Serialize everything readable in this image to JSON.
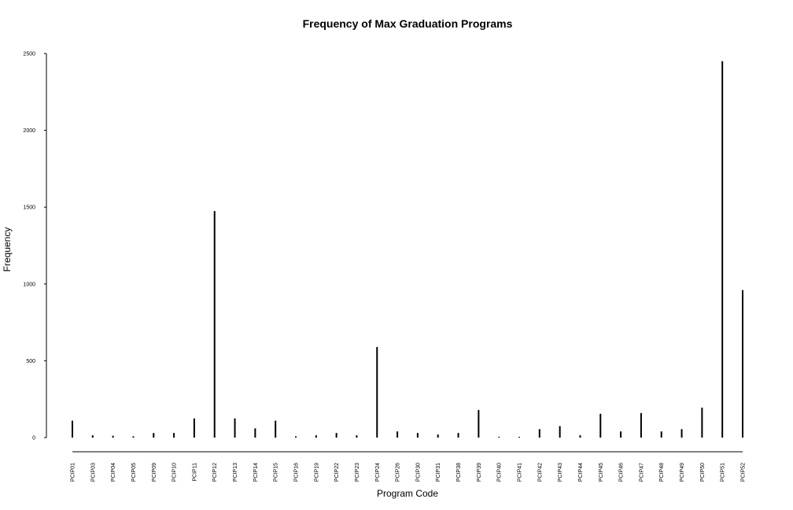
{
  "chart_data": {
    "type": "bar",
    "title": "Frequency of Max Graduation Programs",
    "xlabel": "Program Code",
    "ylabel": "Frequency",
    "ylim": [
      0,
      2500
    ],
    "yticks": [
      0,
      500,
      1000,
      1500,
      2000,
      2500
    ],
    "grid": false,
    "legend": "none",
    "categories": [
      "PCIP01",
      "PCIP03",
      "PCIP04",
      "PCIP05",
      "PCIP09",
      "PCIP10",
      "PCIP11",
      "PCIP12",
      "PCIP13",
      "PCIP14",
      "PCIP15",
      "PCIP16",
      "PCIP19",
      "PCIP22",
      "PCIP23",
      "PCIP24",
      "PCIP26",
      "PCIP30",
      "PCIP31",
      "PCIP38",
      "PCIP39",
      "PCIP40",
      "PCIP41",
      "PCIP42",
      "PCIP43",
      "PCIP44",
      "PCIP45",
      "PCIP46",
      "PCIP47",
      "PCIP48",
      "PCIP49",
      "PCIP50",
      "PCIP51",
      "PCIP52"
    ],
    "values": [
      110,
      15,
      12,
      8,
      30,
      30,
      125,
      1475,
      125,
      60,
      110,
      8,
      15,
      30,
      15,
      590,
      40,
      30,
      20,
      30,
      180,
      5,
      5,
      55,
      75,
      15,
      155,
      40,
      160,
      40,
      55,
      195,
      2450,
      960
    ],
    "bar_color": "#000000"
  }
}
